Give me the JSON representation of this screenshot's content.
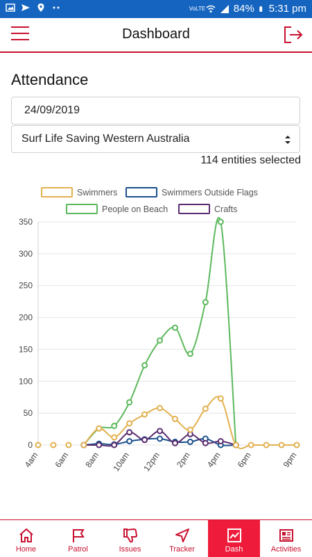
{
  "status_bar": {
    "battery": "84%",
    "time": "5:31 pm",
    "network": "VoLTE"
  },
  "header": {
    "title": "Dashboard"
  },
  "attendance": {
    "title": "Attendance",
    "date": "24/09/2019",
    "organisation": "Surf Life Saving Western Australia",
    "entities_text": "114 entities selected"
  },
  "chart_data": {
    "type": "line",
    "x": [
      "4am",
      "5am",
      "6am",
      "7am",
      "8am",
      "9am",
      "10am",
      "11am",
      "12pm",
      "1pm",
      "2pm",
      "3pm",
      "4pm",
      "5pm",
      "6pm",
      "7pm",
      "8pm",
      "9pm"
    ],
    "x_tick_labels": [
      "4am",
      "6am",
      "8am",
      "10am",
      "12pm",
      "2pm",
      "4pm",
      "6pm",
      "9pm"
    ],
    "ylim": [
      0,
      350
    ],
    "y_ticks": [
      0,
      50,
      100,
      150,
      200,
      250,
      300,
      350
    ],
    "grid": true,
    "legend_position": "top",
    "series": [
      {
        "name": "Swimmers",
        "color": "#e2b04f",
        "values": [
          null,
          null,
          null,
          0,
          26,
          12,
          34,
          48,
          58,
          41,
          24,
          57,
          73,
          0,
          0,
          0,
          0,
          0
        ]
      },
      {
        "name": "Swimmers Outside Flags",
        "color": "#1a4f8b",
        "values": [
          null,
          null,
          null,
          0,
          2,
          1,
          6,
          9,
          10,
          5,
          5,
          10,
          0,
          0,
          null,
          null,
          null,
          null
        ]
      },
      {
        "name": "People on Beach",
        "color": "#5cb85c",
        "values": [
          null,
          null,
          null,
          0,
          26,
          30,
          67,
          125,
          164,
          184,
          143,
          224,
          350,
          0,
          null,
          null,
          null,
          null
        ]
      },
      {
        "name": "Crafts",
        "color": "#5b2c6f",
        "values": [
          null,
          null,
          null,
          0,
          0,
          0,
          20,
          8,
          22,
          3,
          17,
          3,
          6,
          0,
          null,
          null,
          null,
          null
        ]
      }
    ],
    "first_points": {
      "Swimmers": [
        0,
        0,
        0
      ]
    }
  },
  "bottom_nav": [
    {
      "label": "Home",
      "icon": "home-icon"
    },
    {
      "label": "Patrol",
      "icon": "flag-icon"
    },
    {
      "label": "Issues",
      "icon": "thumbs-down-icon"
    },
    {
      "label": "Tracker",
      "icon": "navigation-icon"
    },
    {
      "label": "Dash",
      "icon": "chart-icon",
      "active": true
    },
    {
      "label": "Activities",
      "icon": "newspaper-icon"
    }
  ]
}
